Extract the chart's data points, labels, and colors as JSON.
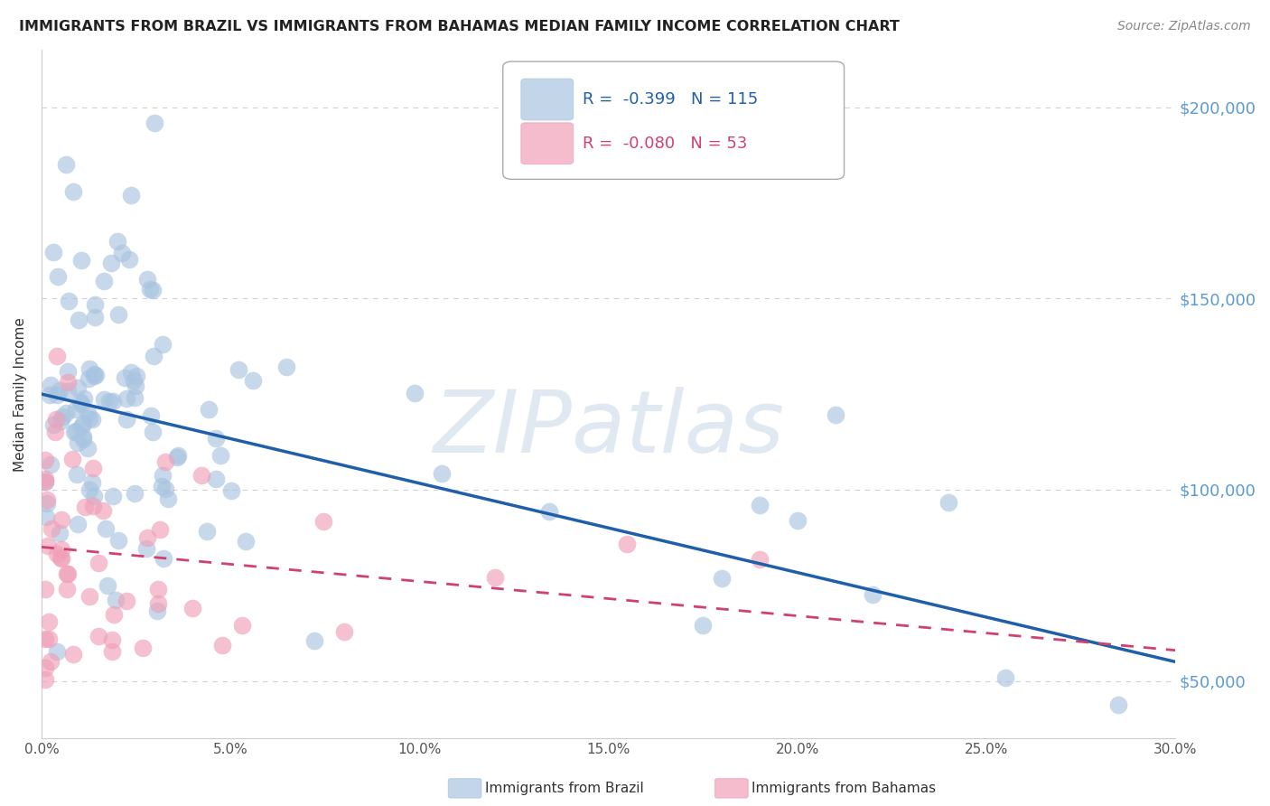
{
  "title": "IMMIGRANTS FROM BRAZIL VS IMMIGRANTS FROM BAHAMAS MEDIAN FAMILY INCOME CORRELATION CHART",
  "source": "Source: ZipAtlas.com",
  "ylabel": "Median Family Income",
  "xlim": [
    0.0,
    0.3
  ],
  "ylim": [
    35000,
    215000
  ],
  "xtick_labels": [
    "0.0%",
    "5.0%",
    "10.0%",
    "15.0%",
    "20.0%",
    "25.0%",
    "30.0%"
  ],
  "xtick_vals": [
    0.0,
    0.05,
    0.1,
    0.15,
    0.2,
    0.25,
    0.3
  ],
  "ytick_vals": [
    50000,
    100000,
    150000,
    200000
  ],
  "ytick_labels": [
    "$50,000",
    "$100,000",
    "$150,000",
    "$200,000"
  ],
  "brazil_R": "-0.399",
  "brazil_N": "115",
  "bahamas_R": "-0.080",
  "bahamas_N": "53",
  "brazil_color": "#a8c4e0",
  "brazil_line_color": "#1f5faa",
  "bahamas_color": "#f0a0b8",
  "bahamas_line_color": "#d04070",
  "watermark": "ZIPatlas",
  "brazil_line_x0": 0.0,
  "brazil_line_y0": 125000,
  "brazil_line_x1": 0.3,
  "brazil_line_y1": 55000,
  "bahamas_line_x0": 0.0,
  "bahamas_line_y0": 85000,
  "bahamas_line_x1": 0.2,
  "bahamas_line_y1": 67000
}
